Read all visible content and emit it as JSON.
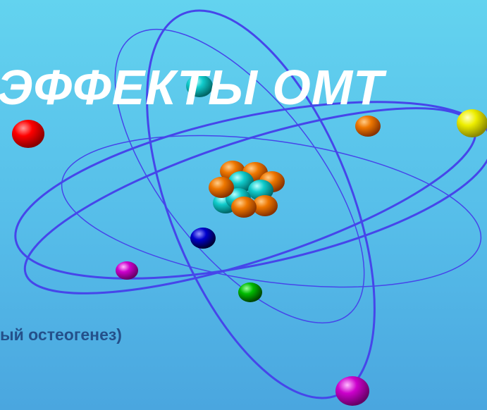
{
  "header": {
    "title": "ЭФФЕКТЫ ОМТ"
  },
  "body": {
    "text": "ый остеогенез)"
  }
}
